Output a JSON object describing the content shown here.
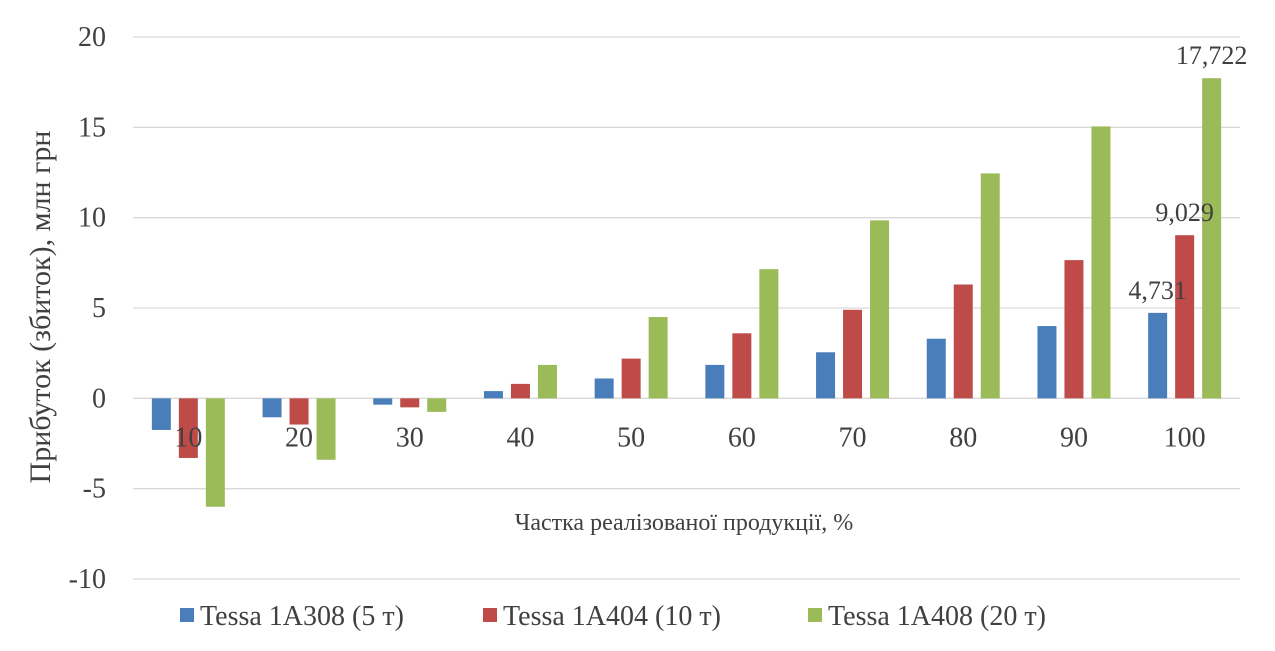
{
  "chart_data": {
    "type": "bar",
    "title": "",
    "xlabel": "Частка реалізованої продукції, %",
    "ylabel": "Прибуток (збиток), млн грн",
    "categories": [
      "10",
      "20",
      "30",
      "40",
      "50",
      "60",
      "70",
      "80",
      "90",
      "100"
    ],
    "ylim": [
      -10,
      20
    ],
    "yticks": [
      20,
      15,
      10,
      5,
      0,
      -5,
      -10
    ],
    "ytick_labels": [
      "20",
      "15",
      "10",
      "5",
      "0",
      "-5",
      "-10"
    ],
    "grid": true,
    "legend_position": "bottom",
    "series": [
      {
        "name": "Tessa 1A308 (5 т)",
        "color": "#4a7ebb",
        "values": [
          -1.75,
          -1.05,
          -0.35,
          0.4,
          1.1,
          1.85,
          2.55,
          3.3,
          4.0,
          4.731
        ]
      },
      {
        "name": "Tessa 1A404 (10 т)",
        "color": "#be4b48",
        "values": [
          -3.3,
          -1.45,
          -0.5,
          0.8,
          2.2,
          3.6,
          4.9,
          6.3,
          7.65,
          9.029
        ]
      },
      {
        "name": "Tessa 1A408 (20 т)",
        "color": "#9bbb59",
        "values": [
          -6.0,
          -3.4,
          -0.75,
          1.85,
          4.5,
          7.15,
          9.85,
          12.45,
          15.05,
          17.722
        ]
      }
    ],
    "data_labels": [
      {
        "series": 0,
        "category": "100",
        "text": "4,731"
      },
      {
        "series": 1,
        "category": "100",
        "text": "9,029"
      },
      {
        "series": 2,
        "category": "100",
        "text": "17,722"
      }
    ]
  }
}
